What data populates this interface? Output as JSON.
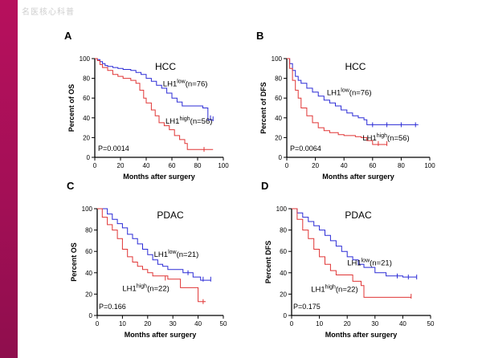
{
  "watermark": "名医核心科普",
  "colors": {
    "low": "#2b2bd6",
    "high": "#e03535",
    "accent": "#a30f56"
  },
  "chart_data": [
    {
      "panel": "A",
      "type": "line",
      "title": "HCC",
      "xlabel": "Months after surgery",
      "ylabel": "Percent of OS",
      "xlim": [
        0,
        100
      ],
      "ylim": [
        0,
        100
      ],
      "xticks": [
        0,
        20,
        40,
        60,
        80,
        100
      ],
      "yticks": [
        0,
        20,
        40,
        60,
        80,
        100
      ],
      "p_value": "P=0.0014",
      "series": [
        {
          "key": "low",
          "name_main": "LH1",
          "name_sup": "low",
          "name_n": "(n=76)",
          "points": [
            [
              0,
              100
            ],
            [
              2,
              99
            ],
            [
              4,
              97
            ],
            [
              6,
              95
            ],
            [
              8,
              93
            ],
            [
              10,
              92
            ],
            [
              14,
              91
            ],
            [
              18,
              90
            ],
            [
              22,
              89
            ],
            [
              28,
              88
            ],
            [
              32,
              86
            ],
            [
              36,
              84
            ],
            [
              40,
              80
            ],
            [
              44,
              77
            ],
            [
              48,
              73
            ],
            [
              52,
              70
            ],
            [
              56,
              65
            ],
            [
              60,
              60
            ],
            [
              64,
              56
            ],
            [
              68,
              52
            ],
            [
              80,
              52
            ],
            [
              84,
              50
            ],
            [
              88,
              38
            ],
            [
              92,
              38
            ]
          ],
          "censors": [
            [
              90,
              40
            ],
            [
              92,
              39
            ]
          ]
        },
        {
          "key": "high",
          "name_main": "LH1",
          "name_sup": "high",
          "name_n": "(n=56)",
          "points": [
            [
              0,
              100
            ],
            [
              2,
              98
            ],
            [
              4,
              94
            ],
            [
              6,
              91
            ],
            [
              10,
              88
            ],
            [
              14,
              84
            ],
            [
              18,
              82
            ],
            [
              22,
              80
            ],
            [
              28,
              78
            ],
            [
              32,
              75
            ],
            [
              35,
              68
            ],
            [
              38,
              60
            ],
            [
              40,
              55
            ],
            [
              44,
              48
            ],
            [
              47,
              42
            ],
            [
              50,
              35
            ],
            [
              54,
              32
            ],
            [
              58,
              28
            ],
            [
              62,
              22
            ],
            [
              66,
              18
            ],
            [
              70,
              14
            ],
            [
              72,
              8
            ],
            [
              92,
              8
            ]
          ],
          "censors": [
            [
              85,
              8
            ]
          ]
        }
      ]
    },
    {
      "panel": "B",
      "type": "line",
      "title": "HCC",
      "xlabel": "Months after surgery",
      "ylabel": "Percent of DFS",
      "xlim": [
        0,
        100
      ],
      "ylim": [
        0,
        100
      ],
      "xticks": [
        0,
        20,
        40,
        60,
        80,
        100
      ],
      "yticks": [
        0,
        20,
        40,
        60,
        80,
        100
      ],
      "p_value": "P=0.0064",
      "series": [
        {
          "key": "low",
          "name_main": "LH1",
          "name_sup": "low",
          "name_n": "(n=76)",
          "points": [
            [
              0,
              100
            ],
            [
              2,
              95
            ],
            [
              4,
              88
            ],
            [
              6,
              82
            ],
            [
              8,
              78
            ],
            [
              10,
              75
            ],
            [
              14,
              70
            ],
            [
              18,
              66
            ],
            [
              22,
              62
            ],
            [
              26,
              58
            ],
            [
              30,
              55
            ],
            [
              34,
              52
            ],
            [
              38,
              48
            ],
            [
              42,
              45
            ],
            [
              46,
              42
            ],
            [
              50,
              40
            ],
            [
              54,
              38
            ],
            [
              56,
              33
            ],
            [
              92,
              33
            ]
          ],
          "censors": [
            [
              60,
              33
            ],
            [
              70,
              33
            ],
            [
              80,
              33
            ],
            [
              90,
              33
            ]
          ]
        },
        {
          "key": "high",
          "name_main": "LH1",
          "name_sup": "high",
          "name_n": "(n=56)",
          "points": [
            [
              0,
              100
            ],
            [
              2,
              90
            ],
            [
              4,
              78
            ],
            [
              6,
              68
            ],
            [
              8,
              60
            ],
            [
              10,
              50
            ],
            [
              14,
              42
            ],
            [
              18,
              35
            ],
            [
              22,
              30
            ],
            [
              26,
              27
            ],
            [
              30,
              25
            ],
            [
              36,
              23
            ],
            [
              40,
              22
            ],
            [
              48,
              21
            ],
            [
              52,
              20
            ],
            [
              56,
              17
            ],
            [
              60,
              13
            ],
            [
              70,
              13
            ]
          ],
          "censors": [
            [
              64,
              14
            ],
            [
              70,
              14
            ]
          ]
        }
      ]
    },
    {
      "panel": "C",
      "type": "line",
      "title": "PDAC",
      "xlabel": "Months after surgery",
      "ylabel": "Percent OS",
      "xlim": [
        0,
        50
      ],
      "ylim": [
        0,
        100
      ],
      "xticks": [
        0,
        10,
        20,
        30,
        40,
        50
      ],
      "yticks": [
        0,
        20,
        40,
        60,
        80,
        100
      ],
      "p_value": "P=0.166",
      "series": [
        {
          "key": "low",
          "name_main": "LH1",
          "name_sup": "low",
          "name_n": "(n=21)",
          "points": [
            [
              0,
              100
            ],
            [
              4,
              95
            ],
            [
              6,
              90
            ],
            [
              8,
              86
            ],
            [
              10,
              82
            ],
            [
              12,
              76
            ],
            [
              14,
              72
            ],
            [
              16,
              67
            ],
            [
              18,
              62
            ],
            [
              20,
              57
            ],
            [
              22,
              52
            ],
            [
              24,
              48
            ],
            [
              26,
              46
            ],
            [
              28,
              43
            ],
            [
              32,
              43
            ],
            [
              34,
              40
            ],
            [
              38,
              36
            ],
            [
              41,
              33
            ],
            [
              45,
              33
            ]
          ],
          "censors": [
            [
              36,
              40
            ],
            [
              42,
              34
            ],
            [
              45,
              34
            ]
          ]
        },
        {
          "key": "high",
          "name_main": "LH1",
          "name_sup": "high",
          "name_n": "(n=22)",
          "points": [
            [
              0,
              100
            ],
            [
              2,
              92
            ],
            [
              4,
              85
            ],
            [
              6,
              80
            ],
            [
              8,
              72
            ],
            [
              10,
              62
            ],
            [
              12,
              55
            ],
            [
              14,
              50
            ],
            [
              16,
              46
            ],
            [
              18,
              43
            ],
            [
              20,
              40
            ],
            [
              22,
              37
            ],
            [
              26,
              37
            ],
            [
              28,
              34
            ],
            [
              32,
              34
            ],
            [
              33,
              26
            ],
            [
              38,
              26
            ],
            [
              40,
              13
            ],
            [
              43,
              13
            ]
          ],
          "censors": [
            [
              27,
              35
            ],
            [
              42,
              13
            ]
          ]
        }
      ]
    },
    {
      "panel": "D",
      "type": "line",
      "title": "PDAC",
      "xlabel": "Months after surgery",
      "ylabel": "Percent DFS",
      "xlim": [
        0,
        50
      ],
      "ylim": [
        0,
        100
      ],
      "xticks": [
        0,
        10,
        20,
        30,
        40,
        50
      ],
      "yticks": [
        0,
        20,
        40,
        60,
        80,
        100
      ],
      "p_value": "P=0.175",
      "series": [
        {
          "key": "low",
          "name_main": "LH1",
          "name_sup": "low",
          "name_n": "(n=21)",
          "points": [
            [
              0,
              100
            ],
            [
              2,
              96
            ],
            [
              4,
              92
            ],
            [
              6,
              88
            ],
            [
              8,
              84
            ],
            [
              10,
              80
            ],
            [
              12,
              75
            ],
            [
              14,
              70
            ],
            [
              16,
              65
            ],
            [
              18,
              60
            ],
            [
              20,
              55
            ],
            [
              22,
              52
            ],
            [
              24,
              48
            ],
            [
              26,
              45
            ],
            [
              30,
              40
            ],
            [
              34,
              37
            ],
            [
              40,
              36
            ],
            [
              45,
              36
            ]
          ],
          "censors": [
            [
              38,
              37
            ],
            [
              42,
              36
            ],
            [
              45,
              36
            ]
          ]
        },
        {
          "key": "high",
          "name_main": "LH1",
          "name_sup": "high",
          "name_n": "(n=22)",
          "points": [
            [
              0,
              100
            ],
            [
              2,
              90
            ],
            [
              4,
              80
            ],
            [
              6,
              72
            ],
            [
              8,
              62
            ],
            [
              10,
              55
            ],
            [
              12,
              48
            ],
            [
              14,
              42
            ],
            [
              16,
              38
            ],
            [
              20,
              38
            ],
            [
              22,
              32
            ],
            [
              25,
              28
            ],
            [
              26,
              17
            ],
            [
              43,
              17
            ]
          ],
          "censors": [
            [
              43,
              18
            ]
          ]
        }
      ]
    }
  ]
}
